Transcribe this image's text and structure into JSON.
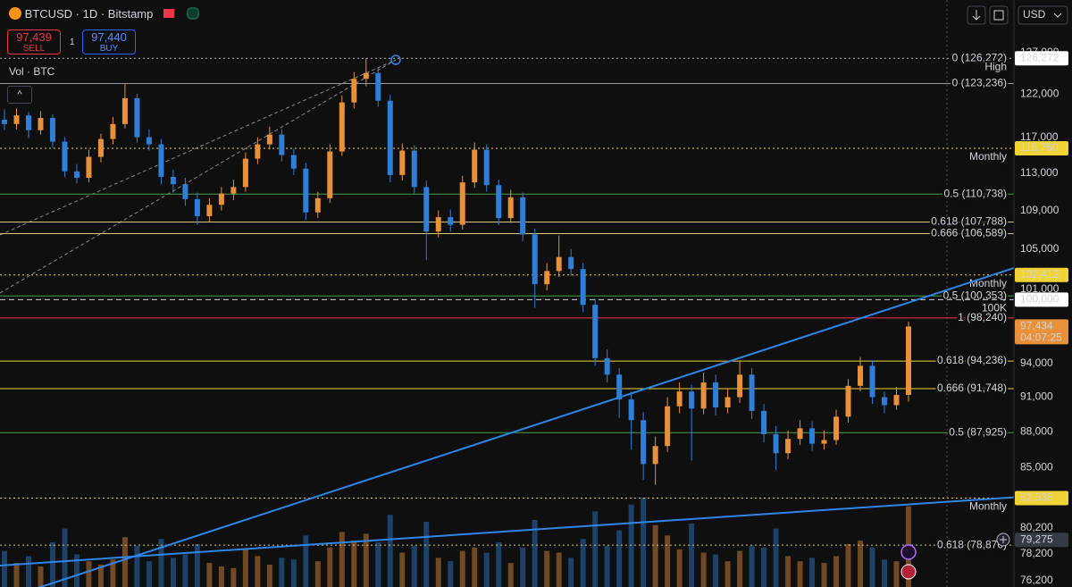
{
  "header": {
    "symbol": "BTCUSD · 1D · Bitstamp",
    "sell_price": "97,439",
    "sell_label": "SELL",
    "spread": "1",
    "buy_price": "97,440",
    "buy_label": "BUY",
    "volume_label": "Vol · BTC",
    "currency": "USD"
  },
  "chart_data": {
    "type": "candlestick",
    "log_scale": true,
    "grid": false,
    "up_color": "#e8913a",
    "down_color": "#2f7fd8",
    "ylim": [
      75740,
      133600
    ],
    "yticks": [
      {
        "value": 127000,
        "label": "127,000"
      },
      {
        "value": 122000,
        "label": "122,000"
      },
      {
        "value": 117000,
        "label": "117,000"
      },
      {
        "value": 113000,
        "label": "113,000"
      },
      {
        "value": 109000,
        "label": "109,000"
      },
      {
        "value": 105000,
        "label": "105,000"
      },
      {
        "value": 101000,
        "label": "101,000"
      },
      {
        "value": 94000,
        "label": "94,000"
      },
      {
        "value": 91000,
        "label": "91,000"
      },
      {
        "value": 88000,
        "label": "88,000"
      },
      {
        "value": 85000,
        "label": "85,000"
      },
      {
        "value": 80200,
        "label": "80,200"
      },
      {
        "value": 78200,
        "label": "78,200"
      },
      {
        "value": 76200,
        "label": "76,200"
      }
    ],
    "candles": [
      [
        119000,
        120200,
        117800,
        118500
      ],
      [
        118500,
        120300,
        117900,
        119500
      ],
      [
        119500,
        119900,
        116900,
        117800
      ],
      [
        117800,
        120000,
        117300,
        119200
      ],
      [
        119200,
        119600,
        115800,
        116500
      ],
      [
        116500,
        117000,
        112600,
        113200
      ],
      [
        113200,
        114000,
        111900,
        112500
      ],
      [
        112500,
        115600,
        112000,
        114800
      ],
      [
        114800,
        117400,
        114200,
        116800
      ],
      [
        116800,
        119300,
        116200,
        118500
      ],
      [
        118500,
        123200,
        118000,
        121500
      ],
      [
        121500,
        122000,
        116400,
        117000
      ],
      [
        117000,
        117900,
        115500,
        116200
      ],
      [
        116200,
        116800,
        111800,
        112600
      ],
      [
        112600,
        113400,
        110900,
        111800
      ],
      [
        111800,
        112500,
        109500,
        110200
      ],
      [
        110200,
        110900,
        107500,
        108400
      ],
      [
        108400,
        110300,
        107800,
        109600
      ],
      [
        109600,
        111500,
        109000,
        110800
      ],
      [
        110800,
        112300,
        110100,
        111500
      ],
      [
        111500,
        115300,
        111000,
        114600
      ],
      [
        114600,
        117000,
        114000,
        116200
      ],
      [
        116200,
        118200,
        115600,
        117300
      ],
      [
        117300,
        117900,
        114300,
        115000
      ],
      [
        115000,
        115700,
        112800,
        113500
      ],
      [
        113500,
        114100,
        108000,
        108800
      ],
      [
        108800,
        111000,
        108200,
        110300
      ],
      [
        110300,
        116200,
        109800,
        115400
      ],
      [
        115400,
        121800,
        114900,
        121000
      ],
      [
        121000,
        124600,
        120300,
        123800
      ],
      [
        123800,
        126272,
        122900,
        124500
      ],
      [
        124500,
        125200,
        120500,
        121200
      ],
      [
        121200,
        121900,
        112000,
        112800
      ],
      [
        112800,
        116300,
        112200,
        115500
      ],
      [
        115500,
        116100,
        110800,
        111500
      ],
      [
        111500,
        112200,
        103900,
        106800
      ],
      [
        106800,
        109000,
        106200,
        108300
      ],
      [
        108300,
        109100,
        106800,
        107500
      ],
      [
        107500,
        112700,
        107000,
        112000
      ],
      [
        112000,
        116400,
        111400,
        115600
      ],
      [
        115600,
        116200,
        111000,
        111700
      ],
      [
        111700,
        112300,
        107500,
        108200
      ],
      [
        108200,
        111200,
        107700,
        110400
      ],
      [
        110400,
        110900,
        105800,
        106500
      ],
      [
        106500,
        107100,
        99200,
        101500
      ],
      [
        101500,
        103600,
        100900,
        102800
      ],
      [
        102800,
        106400,
        102200,
        104200
      ],
      [
        104200,
        105000,
        102300,
        103000
      ],
      [
        103000,
        103600,
        98800,
        99500
      ],
      [
        99500,
        100100,
        93800,
        94500
      ],
      [
        94500,
        95300,
        92300,
        93000
      ],
      [
        93000,
        93600,
        89200,
        90800
      ],
      [
        90800,
        91500,
        86500,
        89000
      ],
      [
        89000,
        89700,
        84000,
        85300
      ],
      [
        85300,
        87600,
        83600,
        86800
      ],
      [
        86800,
        91000,
        86300,
        90200
      ],
      [
        90200,
        92300,
        89600,
        91500
      ],
      [
        91500,
        92100,
        85600,
        90000
      ],
      [
        90000,
        93200,
        89500,
        92300
      ],
      [
        92300,
        93000,
        89400,
        90100
      ],
      [
        90100,
        91800,
        89600,
        91000
      ],
      [
        91000,
        94300,
        90500,
        93000
      ],
      [
        93000,
        93600,
        89100,
        89800
      ],
      [
        89800,
        90400,
        87100,
        87800
      ],
      [
        87800,
        88500,
        84800,
        86200
      ],
      [
        86200,
        88100,
        85700,
        87400
      ],
      [
        87400,
        89000,
        86900,
        88300
      ],
      [
        88300,
        88900,
        86400,
        87000
      ],
      [
        87000,
        88100,
        86500,
        87300
      ],
      [
        87300,
        89900,
        86900,
        89300
      ],
      [
        89300,
        92600,
        88800,
        92000
      ],
      [
        92000,
        94600,
        91500,
        93800
      ],
      [
        93800,
        94300,
        90400,
        91000
      ],
      [
        91000,
        91500,
        89600,
        90300
      ],
      [
        90300,
        91900,
        89900,
        91200
      ],
      [
        91200,
        97900,
        90600,
        97434
      ]
    ],
    "volume": [
      2100,
      1400,
      1800,
      1200,
      2600,
      3400,
      1900,
      1500,
      1300,
      1600,
      2900,
      2400,
      1500,
      2800,
      1700,
      1900,
      2500,
      1400,
      1200,
      1100,
      2200,
      1800,
      1300,
      1700,
      1600,
      3000,
      1500,
      2300,
      3200,
      2700,
      3100,
      2600,
      4200,
      2000,
      2400,
      3800,
      1700,
      1500,
      2100,
      2300,
      2000,
      2600,
      1400,
      2300,
      3900,
      2100,
      2000,
      1700,
      2800,
      4400,
      2400,
      3300,
      4800,
      5200,
      3600,
      3000,
      2200,
      3700,
      2000,
      1900,
      1500,
      2100,
      2400,
      2300,
      3400,
      1800,
      1500,
      1700,
      1400,
      1800,
      2500,
      2700,
      2300,
      1600,
      1500,
      4700
    ],
    "levels": [
      {
        "price": 126272,
        "label": "0 (126,272)",
        "sublabel": "High",
        "color": "#b2b5be",
        "style": "dotted",
        "label_position": "on"
      },
      {
        "price": 123236,
        "label": "0 (123,236)",
        "color": "#9598a1",
        "style": "solid",
        "label_position": "on"
      },
      {
        "price": 115750,
        "label": "Monthly",
        "color": "#f0d437",
        "style": "dotted",
        "label_position": "below"
      },
      {
        "price": 110738,
        "label": "0.5 (110,738)",
        "color": "#43a047",
        "style": "solid",
        "label_position": "on"
      },
      {
        "price": 107788,
        "label": "0.618 (107,788)",
        "color": "#d8c97a",
        "style": "solid",
        "label_position": "on"
      },
      {
        "price": 106589,
        "label": "0.666 (106,589)",
        "color": "#d8c97a",
        "style": "solid",
        "label_position": "on"
      },
      {
        "price": 102412,
        "label": "Monthly",
        "color": "#f0d437",
        "style": "dotted",
        "label_position": "below"
      },
      {
        "price": 100353,
        "label": "0.5 (100,353)",
        "color": "#43a047",
        "style": "solid",
        "label_position": "on"
      },
      {
        "price": 100000,
        "label": "100K",
        "color": "#d1d4dc",
        "style": "dashed",
        "label_position": "below"
      },
      {
        "price": 98240,
        "label": "1 (98,240)",
        "color": "#f23645",
        "style": "solid",
        "label_position": "on"
      },
      {
        "price": 94236,
        "label": "0.618 (94,236)",
        "color": "#f0d437",
        "style": "solid",
        "label_position": "on"
      },
      {
        "price": 91748,
        "label": "0.666 (91,748)",
        "color": "#f0d437",
        "style": "solid",
        "label_position": "on"
      },
      {
        "price": 87925,
        "label": "0.5 (87,925)",
        "color": "#43a047",
        "style": "solid",
        "label_position": "on"
      },
      {
        "price": 82538,
        "label": "Monthly",
        "color": "#f0d437",
        "style": "dotted",
        "label_position": "below"
      },
      {
        "price": 78870,
        "label": "0.618 (78,870)",
        "color": "#d8c97a",
        "style": "dotted",
        "label_position": "on"
      }
    ],
    "trendlines": [
      {
        "color": "#2f86e8",
        "start": 74770,
        "end": 103100
      },
      {
        "color": "#2f86e8",
        "start": 77330,
        "end": 82600
      }
    ],
    "axis_badges": [
      {
        "value": 126272,
        "label": "126,272",
        "bg": "#ffffff",
        "fg": "#000000"
      },
      {
        "value": 115750,
        "label": "115,750",
        "bg": "#f0d437",
        "fg": "#000000"
      },
      {
        "value": 102412,
        "label": "102,412",
        "bg": "#f0d437",
        "fg": "#000000"
      },
      {
        "value": 100000,
        "label": "100,000",
        "bg": "#ffffff",
        "fg": "#000000"
      },
      {
        "value": 97434,
        "label": "97,434",
        "sublabel": "04:07:25",
        "bg": "#e8913a",
        "fg": "#000000"
      },
      {
        "value": 82538,
        "label": "82,538",
        "bg": "#f0d437",
        "fg": "#000000"
      },
      {
        "value": 79275,
        "label": "79,275",
        "bg": "#363a45",
        "fg": "#d1d4dc"
      }
    ]
  }
}
